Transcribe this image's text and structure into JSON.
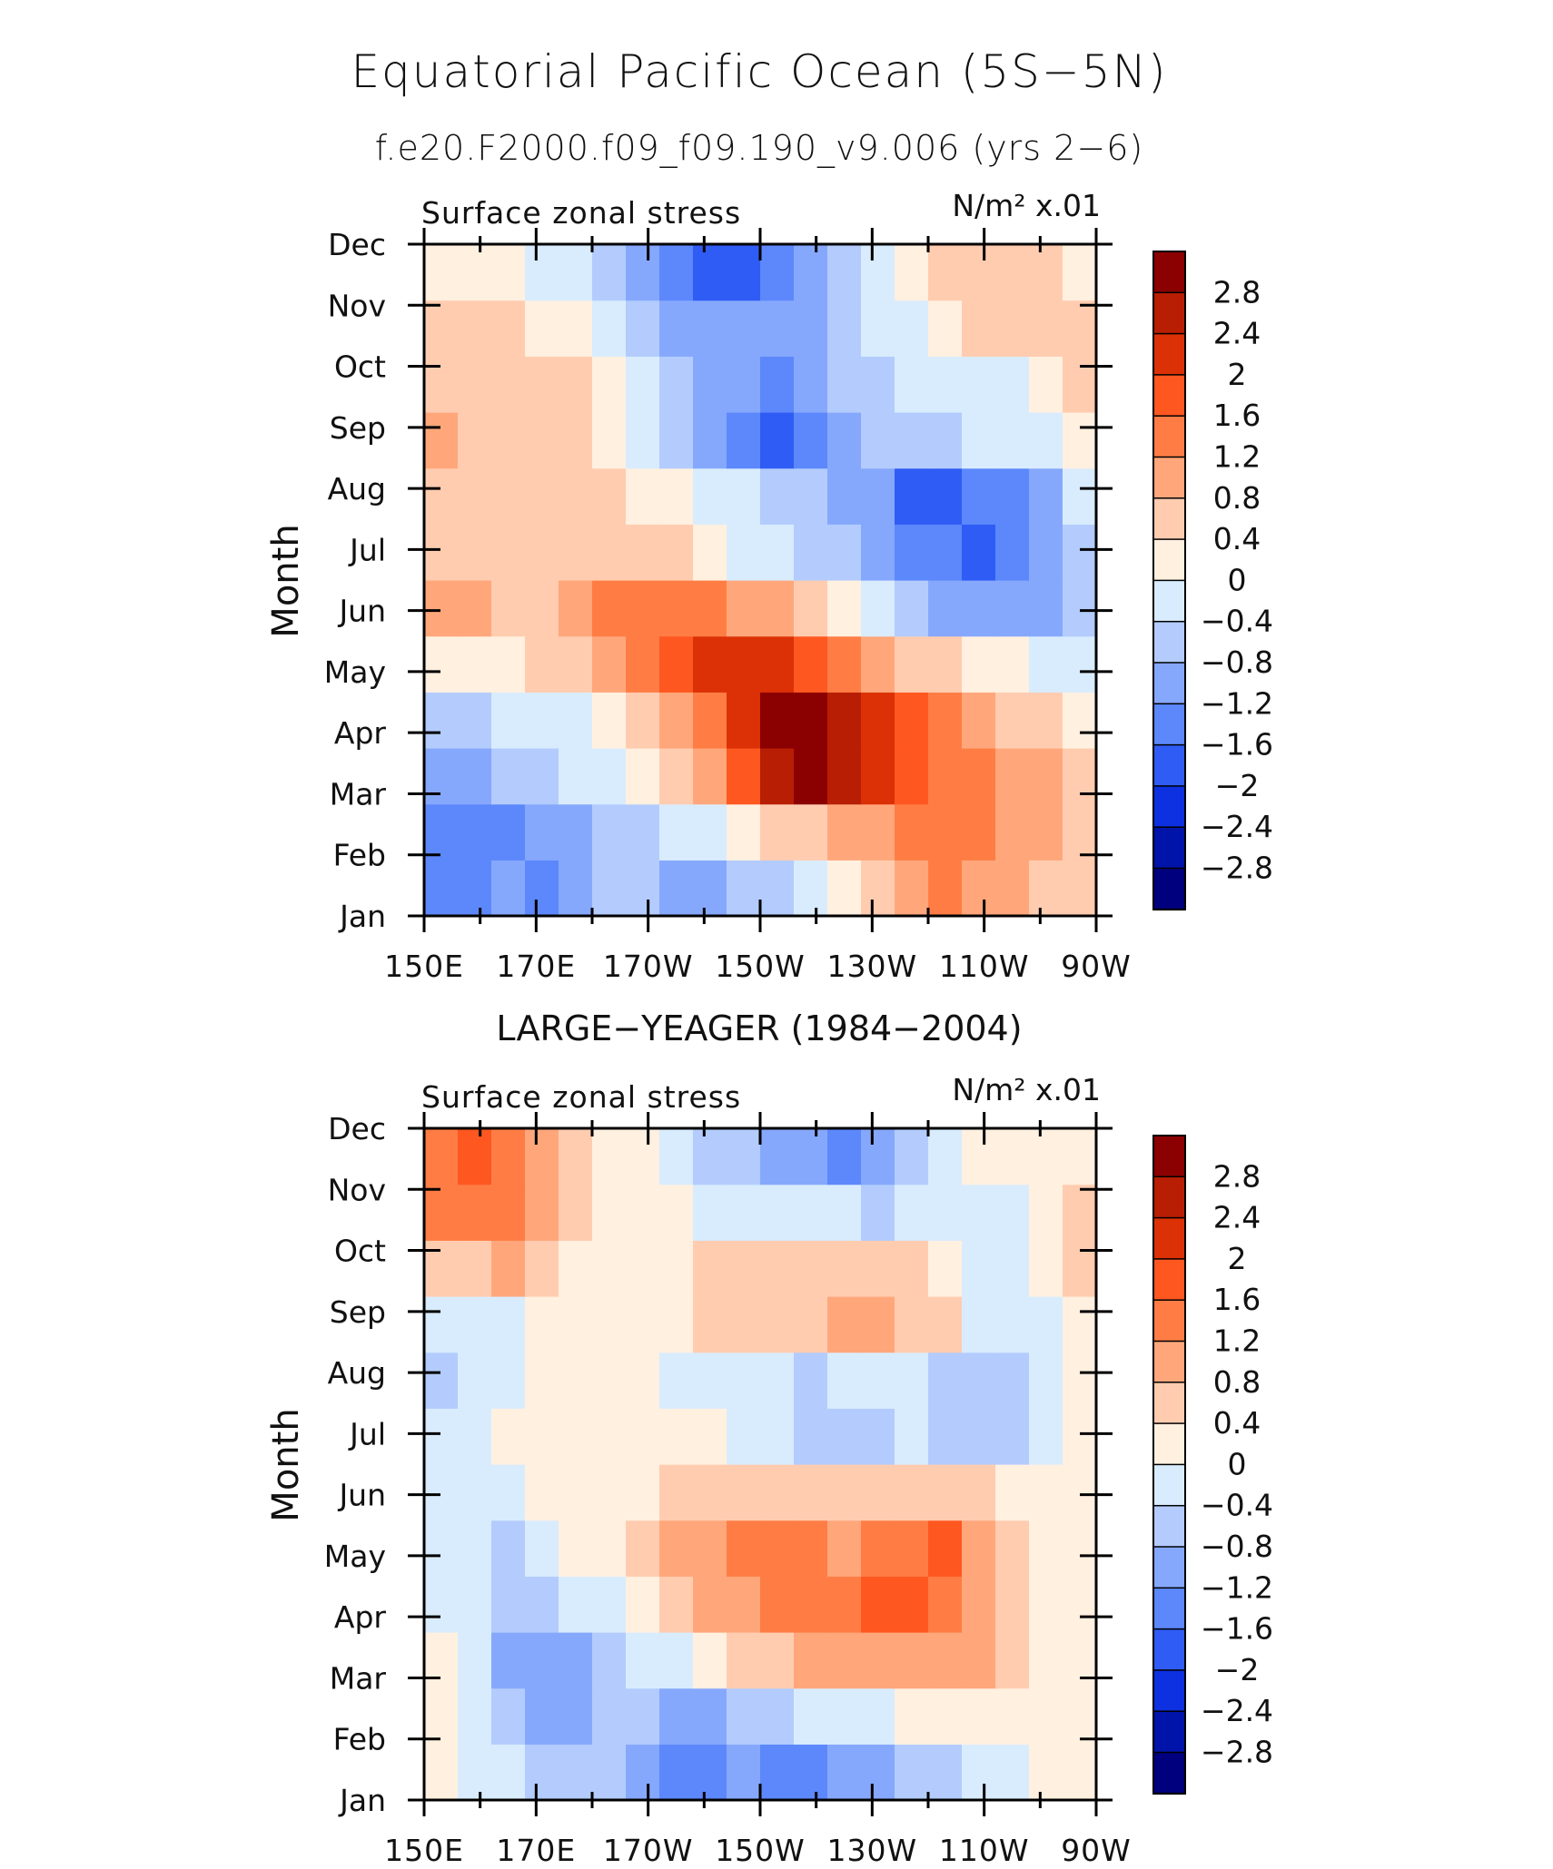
{
  "figure": {
    "title": "Equatorial Pacific Ocean (5S−5N)",
    "subtitle": "f.e20.F2000.f09_f09.190_v9.006 (yrs 2−6)"
  },
  "colorbar": {
    "levels": [
      "2.8",
      "2.4",
      "2",
      "1.6",
      "1.2",
      "0.8",
      "0.4",
      "0",
      "−0.4",
      "−0.8",
      "−1.2",
      "−1.6",
      "−2",
      "−2.4",
      "−2.8"
    ],
    "colors": [
      "#8b0000",
      "#b81e04",
      "#dc3106",
      "#ff5720",
      "#ff7d45",
      "#ffa77b",
      "#ffccb0",
      "#fff0e0",
      "#d9ecfd",
      "#b3ccfd",
      "#86a8fc",
      "#5c88fb",
      "#2f5cf4",
      "#0d30e0",
      "#0014aa",
      "#00007f"
    ]
  },
  "chart_data": [
    {
      "type": "heatmap",
      "panel_title": "",
      "left_label": "Surface zonal stress",
      "right_label": "N/m² x.01",
      "ylabel": "Month",
      "x_ticks": [
        "150E",
        "170E",
        "170W",
        "150W",
        "130W",
        "110W",
        "90W"
      ],
      "y_ticks": [
        "Jan",
        "Feb",
        "Mar",
        "Apr",
        "May",
        "Jun",
        "Jul",
        "Aug",
        "Sep",
        "Oct",
        "Nov",
        "Dec"
      ],
      "x_range": [
        "150E",
        "90W"
      ],
      "z_range": [
        -3.0,
        3.0
      ],
      "grid": [
        [
          -1.6,
          -1.6,
          -1.2,
          -1.6,
          -1.2,
          -0.8,
          -0.8,
          -1.2,
          -1.2,
          -0.8,
          -0.8,
          -0.4,
          0.0,
          0.4,
          0.8,
          1.2,
          0.8,
          0.8,
          0.4,
          0.4
        ],
        [
          -1.6,
          -1.6,
          -1.6,
          -1.2,
          -1.2,
          -0.8,
          -0.8,
          -0.4,
          -0.4,
          0.0,
          0.4,
          0.4,
          0.8,
          0.8,
          1.2,
          1.2,
          1.2,
          0.8,
          0.8,
          0.4
        ],
        [
          -1.2,
          -1.2,
          -0.8,
          -0.8,
          -0.4,
          -0.4,
          0.0,
          0.4,
          0.8,
          1.6,
          2.4,
          2.8,
          2.4,
          2.0,
          1.6,
          1.2,
          1.2,
          0.8,
          0.8,
          0.4
        ],
        [
          -0.8,
          -0.8,
          -0.4,
          -0.4,
          -0.4,
          0.0,
          0.4,
          0.8,
          1.2,
          2.0,
          3.2,
          3.2,
          2.4,
          2.0,
          1.6,
          1.2,
          0.8,
          0.4,
          0.4,
          0.0
        ],
        [
          0.0,
          0.0,
          0.0,
          0.4,
          0.4,
          0.8,
          1.2,
          1.6,
          2.0,
          2.0,
          2.0,
          1.6,
          1.2,
          0.8,
          0.4,
          0.4,
          0.0,
          0.0,
          -0.4,
          -0.4
        ],
        [
          0.8,
          0.8,
          0.4,
          0.4,
          0.8,
          1.2,
          1.2,
          1.2,
          1.2,
          0.8,
          0.8,
          0.4,
          0.0,
          -0.4,
          -0.8,
          -1.2,
          -1.2,
          -1.2,
          -1.2,
          -0.8
        ],
        [
          0.4,
          0.4,
          0.4,
          0.4,
          0.4,
          0.4,
          0.4,
          0.4,
          0.0,
          -0.4,
          -0.4,
          -0.8,
          -0.8,
          -1.2,
          -1.6,
          -1.6,
          -2.0,
          -1.6,
          -1.2,
          -0.8
        ],
        [
          0.4,
          0.4,
          0.4,
          0.4,
          0.4,
          0.4,
          0.0,
          0.0,
          -0.4,
          -0.4,
          -0.8,
          -0.8,
          -1.2,
          -1.2,
          -2.0,
          -2.0,
          -1.6,
          -1.6,
          -1.2,
          -0.4
        ],
        [
          0.8,
          0.4,
          0.4,
          0.4,
          0.4,
          0.0,
          -0.4,
          -0.8,
          -1.2,
          -1.6,
          -2.0,
          -1.6,
          -1.2,
          -0.8,
          -0.8,
          -0.8,
          -0.4,
          -0.4,
          -0.4,
          0.0
        ],
        [
          0.4,
          0.4,
          0.4,
          0.4,
          0.4,
          0.0,
          -0.4,
          -0.8,
          -1.2,
          -1.2,
          -1.6,
          -1.2,
          -0.8,
          -0.8,
          -0.4,
          -0.4,
          -0.4,
          -0.4,
          0.0,
          0.4
        ],
        [
          0.4,
          0.4,
          0.4,
          0.0,
          0.0,
          -0.4,
          -0.8,
          -1.2,
          -1.2,
          -1.2,
          -1.2,
          -1.2,
          -0.8,
          -0.4,
          -0.4,
          0.0,
          0.4,
          0.4,
          0.4,
          0.4
        ],
        [
          0.0,
          0.0,
          0.0,
          -0.4,
          -0.4,
          -0.8,
          -1.2,
          -1.6,
          -2.0,
          -2.0,
          -1.6,
          -1.2,
          -0.8,
          -0.4,
          0.0,
          0.4,
          0.4,
          0.4,
          0.4,
          0.0
        ]
      ]
    },
    {
      "type": "heatmap",
      "panel_title": "LARGE−YEAGER (1984−2004)",
      "left_label": "Surface zonal stress",
      "right_label": "N/m² x.01",
      "ylabel": "Month",
      "x_ticks": [
        "150E",
        "170E",
        "170W",
        "150W",
        "130W",
        "110W",
        "90W"
      ],
      "y_ticks": [
        "Jan",
        "Feb",
        "Mar",
        "Apr",
        "May",
        "Jun",
        "Jul",
        "Aug",
        "Sep",
        "Oct",
        "Nov",
        "Dec"
      ],
      "x_range": [
        "150E",
        "90W"
      ],
      "z_range": [
        -3.0,
        3.0
      ],
      "grid": [
        [
          0.0,
          -0.4,
          -0.4,
          -0.8,
          -0.8,
          -0.8,
          -1.2,
          -1.6,
          -1.6,
          -1.2,
          -1.6,
          -1.6,
          -1.2,
          -1.2,
          -0.8,
          -0.8,
          -0.4,
          -0.4,
          0.0,
          0.0
        ],
        [
          0.0,
          -0.4,
          -0.8,
          -1.2,
          -1.2,
          -0.8,
          -0.8,
          -1.2,
          -1.2,
          -0.8,
          -0.8,
          -0.4,
          -0.4,
          -0.4,
          0.0,
          0.0,
          0.0,
          0.0,
          0.0,
          0.0
        ],
        [
          0.0,
          -0.4,
          -1.2,
          -1.2,
          -1.2,
          -0.8,
          -0.4,
          -0.4,
          0.0,
          0.4,
          0.4,
          0.8,
          0.8,
          0.8,
          0.8,
          0.8,
          0.8,
          0.4,
          0.0,
          0.0
        ],
        [
          -0.4,
          -0.4,
          -0.8,
          -0.8,
          -0.4,
          -0.4,
          0.0,
          0.4,
          0.8,
          0.8,
          1.2,
          1.2,
          1.2,
          1.6,
          1.6,
          1.2,
          0.8,
          0.4,
          0.0,
          0.0
        ],
        [
          -0.4,
          -0.4,
          -0.8,
          -0.4,
          0.0,
          0.0,
          0.4,
          0.8,
          0.8,
          1.2,
          1.2,
          1.2,
          0.8,
          1.2,
          1.2,
          1.6,
          0.8,
          0.4,
          0.0,
          0.0
        ],
        [
          -0.4,
          -0.4,
          -0.4,
          0.0,
          0.0,
          0.0,
          0.0,
          0.4,
          0.4,
          0.4,
          0.4,
          0.4,
          0.4,
          0.4,
          0.4,
          0.4,
          0.4,
          0.0,
          0.0,
          0.0
        ],
        [
          -0.4,
          -0.4,
          0.0,
          0.0,
          0.0,
          0.0,
          0.0,
          0.0,
          0.0,
          -0.4,
          -0.4,
          -0.8,
          -0.8,
          -0.8,
          -0.4,
          -0.8,
          -0.8,
          -0.8,
          -0.4,
          0.0
        ],
        [
          -0.8,
          -0.4,
          -0.4,
          0.0,
          0.0,
          0.0,
          0.0,
          -0.4,
          -0.4,
          -0.4,
          -0.4,
          -0.8,
          -0.4,
          -0.4,
          -0.4,
          -0.8,
          -0.8,
          -0.8,
          -0.4,
          0.0
        ],
        [
          -0.4,
          -0.4,
          -0.4,
          0.0,
          0.0,
          0.0,
          0.0,
          0.0,
          0.4,
          0.4,
          0.4,
          0.4,
          0.8,
          0.8,
          0.4,
          0.4,
          -0.4,
          -0.4,
          -0.4,
          0.0
        ],
        [
          0.4,
          0.4,
          0.8,
          0.4,
          0.0,
          0.0,
          0.0,
          0.0,
          0.4,
          0.4,
          0.4,
          0.4,
          0.4,
          0.4,
          0.4,
          0.0,
          -0.4,
          -0.4,
          0.0,
          0.4
        ],
        [
          1.2,
          1.2,
          1.2,
          0.8,
          0.4,
          0.0,
          0.0,
          0.0,
          -0.4,
          -0.4,
          -0.4,
          -0.4,
          -0.4,
          -0.8,
          -0.4,
          -0.4,
          -0.4,
          -0.4,
          0.0,
          0.4
        ],
        [
          1.2,
          1.6,
          1.2,
          0.8,
          0.4,
          0.0,
          0.0,
          -0.4,
          -0.8,
          -0.8,
          -1.2,
          -1.2,
          -1.6,
          -1.2,
          -0.8,
          -0.4,
          0.0,
          0.0,
          0.0,
          0.0
        ]
      ]
    }
  ]
}
